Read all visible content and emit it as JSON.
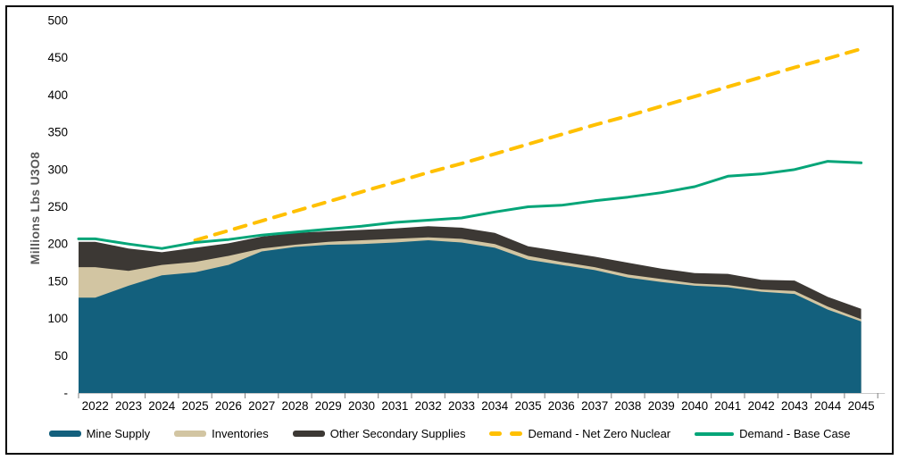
{
  "y_axis_title": "Millions Lbs U3O8",
  "chart_data": {
    "type": "area",
    "stacked_areas": true,
    "title": "",
    "xlabel": "",
    "ylabel": "Millions Lbs U3O8",
    "ylim": [
      0,
      500
    ],
    "ytick_step": 50,
    "ytick_labels_top_to_bottom": [
      "500",
      "450",
      "400",
      "350",
      "300",
      "250",
      "200",
      "150",
      "100",
      "50",
      "-"
    ],
    "grid": false,
    "legend_position": "bottom",
    "years": [
      2022,
      2023,
      2024,
      2025,
      2026,
      2027,
      2028,
      2029,
      2030,
      2031,
      2032,
      2033,
      2034,
      2035,
      2036,
      2037,
      2038,
      2039,
      2040,
      2041,
      2042,
      2043,
      2044,
      2045
    ],
    "series": [
      {
        "name": "Mine Supply",
        "type": "area",
        "color": "#13607D",
        "values": [
          128,
          144,
          158,
          162,
          172,
          190,
          196,
          199,
          200,
          202,
          205,
          202,
          195,
          179,
          172,
          165,
          155,
          149,
          144,
          142,
          136,
          133,
          112,
          96
        ]
      },
      {
        "name": "Inventories",
        "type": "area",
        "color": "#D2C5A2",
        "values": [
          41,
          20,
          14,
          14,
          12,
          4,
          3,
          4,
          5,
          5,
          4,
          5,
          5,
          5,
          4,
          4,
          4,
          4,
          3,
          3,
          3,
          4,
          4,
          3
        ]
      },
      {
        "name": "Other Secondary Supplies",
        "type": "area",
        "color": "#3C3834",
        "values": [
          34,
          30,
          17,
          19,
          17,
          16,
          16,
          14,
          14,
          14,
          15,
          15,
          15,
          13,
          14,
          14,
          16,
          14,
          14,
          15,
          13,
          14,
          13,
          14
        ]
      },
      {
        "name": "Demand - Net Zero Nuclear",
        "type": "dashed-line",
        "color": "#FFC000",
        "start_year": 2025,
        "values": [
          205,
          218,
          231,
          244,
          257,
          270,
          283,
          296,
          308,
          321,
          334,
          347,
          360,
          372,
          385,
          398,
          411,
          424,
          437,
          449,
          462
        ]
      },
      {
        "name": "Demand - Base Case",
        "type": "line",
        "color": "#04A578",
        "values": [
          207,
          200,
          194,
          202,
          206,
          212,
          216,
          220,
          224,
          229,
          232,
          235,
          243,
          250,
          252,
          258,
          263,
          269,
          277,
          291,
          294,
          300,
          311,
          309
        ]
      }
    ],
    "axis_colors": {
      "tick_label": "#000000",
      "axis_line": "#C9C9C9",
      "tick_mark": "#7F7F7F",
      "y_title": "#595959"
    }
  }
}
